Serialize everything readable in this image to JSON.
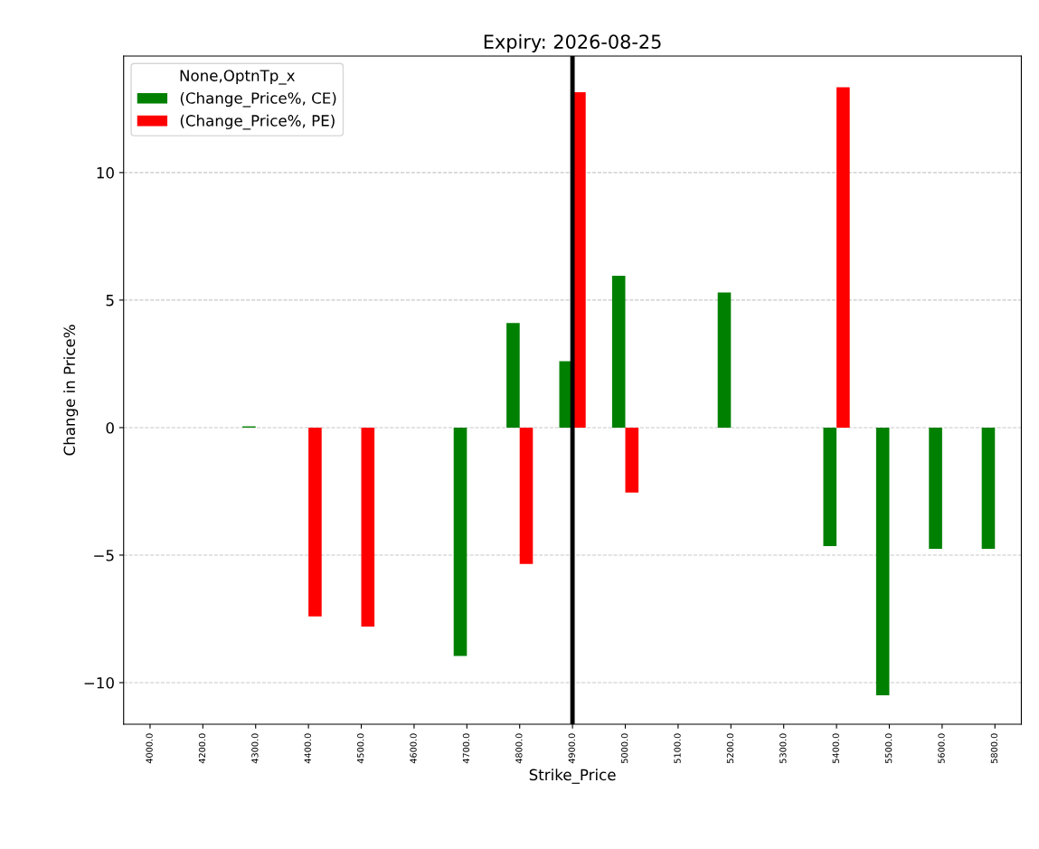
{
  "chart_data": {
    "type": "bar",
    "title": "Expiry: 2026-08-25",
    "xlabel": "Strike_Price",
    "ylabel": "Change in Price%",
    "legend_title": "None,OptnTp_x",
    "categories": [
      "4000.0",
      "4200.0",
      "4300.0",
      "4400.0",
      "4500.0",
      "4600.0",
      "4700.0",
      "4800.0",
      "4900.0",
      "5000.0",
      "5100.0",
      "5200.0",
      "5300.0",
      "5400.0",
      "5500.0",
      "5600.0",
      "5800.0"
    ],
    "series": [
      {
        "name": "(Change_Price%, CE)",
        "color": "#008000",
        "values": [
          null,
          null,
          0.05,
          null,
          null,
          null,
          -8.95,
          4.1,
          2.6,
          5.95,
          null,
          5.3,
          null,
          -4.65,
          -10.5,
          -4.75,
          -4.75
        ]
      },
      {
        "name": "(Change_Price%, PE)",
        "color": "#ff0000",
        "values": [
          null,
          null,
          null,
          -7.4,
          -7.8,
          null,
          null,
          -5.35,
          13.15,
          -2.55,
          null,
          null,
          null,
          13.35,
          null,
          null,
          null
        ]
      }
    ],
    "ylim": [
      -11.63,
      14.57
    ],
    "yticks": [
      {
        "value": -10,
        "label": "−10"
      },
      {
        "value": -5,
        "label": "−5"
      },
      0,
      5,
      10
    ],
    "ref_lines": [
      {
        "axis": "x",
        "value": "4900.0",
        "color": "#000000",
        "line_style": "solid"
      }
    ],
    "grid": "y",
    "legend": "top left"
  }
}
